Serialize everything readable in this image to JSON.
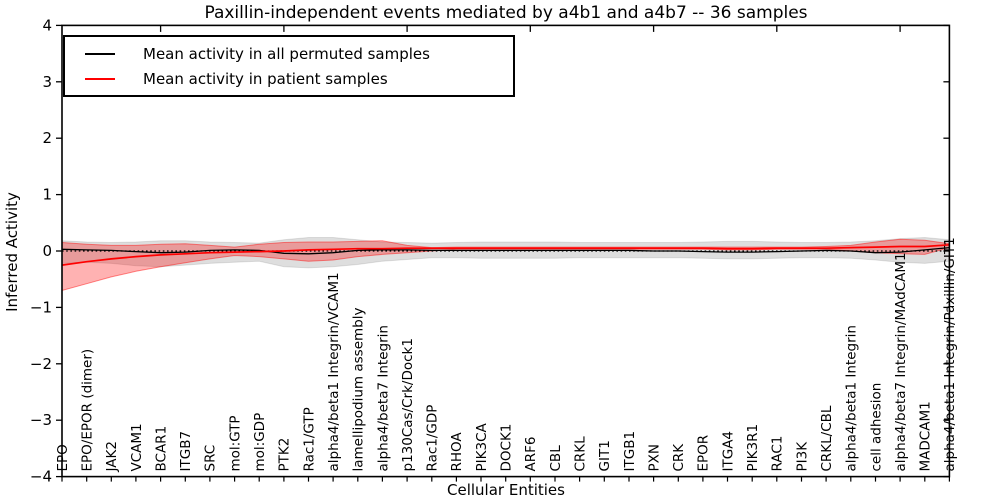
{
  "figure": {
    "title": "Paxillin-independent events mediated by a4b1 and a4b7 -- 36 samples",
    "xlabel": "Cellular Entities",
    "ylabel": "Inferred Activity"
  },
  "legend": {
    "items": [
      {
        "label": "Mean activity in all permuted samples",
        "color": "#000000"
      },
      {
        "label": "Mean activity in patient samples",
        "color": "#ff0000"
      }
    ]
  },
  "chart_data": {
    "type": "line",
    "title": "Paxillin-independent events mediated by a4b1 and a4b7 -- 36 samples",
    "xlabel": "Cellular Entities",
    "ylabel": "Inferred Activity",
    "ylim": [
      -4,
      4
    ],
    "yticks": [
      -4,
      -3,
      -2,
      -1,
      0,
      1,
      2,
      3,
      4
    ],
    "x_major_ticks": [
      5,
      10,
      15,
      20,
      25,
      30,
      35
    ],
    "grid": false,
    "legend_position": "upper left",
    "zero_line": 0,
    "categories": [
      "EPO",
      "EPO/EPOR (dimer)",
      "JAK2",
      "VCAM1",
      "BCAR1",
      "ITGB7",
      "SRC",
      "mol:GTP",
      "mol:GDP",
      "PTK2",
      "Rac1/GTP",
      "alpha4/beta1 Integrin/VCAM1",
      "lamellipodium assembly",
      "alpha4/beta7 Integrin",
      "p130Cas/Crk/Dock1",
      "Rac1/GDP",
      "RHOA",
      "PIK3CA",
      "DOCK1",
      "ARF6",
      "CBL",
      "CRKL",
      "GIT1",
      "ITGB1",
      "PXN",
      "CRK",
      "EPOR",
      "ITGA4",
      "PIK3R1",
      "RAC1",
      "PI3K",
      "CRKL/CBL",
      "alpha4/beta1 Integrin",
      "cell adhesion",
      "alpha4/beta7 Integrin/MAdCAM1",
      "MADCAM1",
      "alpha4/beta1 Integrin/Paxillin/GIT1"
    ],
    "series": [
      {
        "name": "Mean activity in all permuted samples",
        "color": "#000000",
        "width": 1.3,
        "values": [
          0.03,
          0.02,
          0.01,
          -0.01,
          -0.03,
          -0.02,
          0.01,
          0.02,
          0.01,
          -0.04,
          -0.05,
          -0.03,
          0.01,
          0.02,
          0.02,
          0.01,
          0.01,
          0.01,
          0.01,
          0.01,
          0.01,
          0.01,
          0.01,
          0.01,
          0.0,
          0.0,
          -0.01,
          -0.02,
          -0.02,
          -0.01,
          0.0,
          0.01,
          0.0,
          -0.03,
          -0.02,
          0.02,
          0.06
        ]
      },
      {
        "name": "Mean activity in patient samples",
        "color": "#ff0000",
        "width": 1.7,
        "values": [
          -0.25,
          -0.19,
          -0.14,
          -0.1,
          -0.07,
          -0.05,
          -0.03,
          -0.02,
          -0.01,
          0.0,
          0.02,
          0.03,
          0.04,
          0.04,
          0.05,
          0.05,
          0.05,
          0.05,
          0.05,
          0.05,
          0.05,
          0.05,
          0.05,
          0.05,
          0.05,
          0.05,
          0.05,
          0.04,
          0.04,
          0.05,
          0.05,
          0.05,
          0.06,
          0.07,
          0.08,
          0.08,
          0.11
        ]
      }
    ],
    "bands": [
      {
        "name": "permuted-samples-range",
        "fill": "rgba(0,0,0,0.13)",
        "edge": "rgba(0,0,0,0.10)",
        "upper": [
          0.18,
          0.16,
          0.15,
          0.16,
          0.18,
          0.18,
          0.16,
          0.15,
          0.14,
          0.2,
          0.24,
          0.24,
          0.2,
          0.16,
          0.15,
          0.14,
          0.15,
          0.16,
          0.16,
          0.16,
          0.16,
          0.15,
          0.15,
          0.15,
          0.15,
          0.15,
          0.16,
          0.17,
          0.17,
          0.16,
          0.15,
          0.15,
          0.16,
          0.18,
          0.22,
          0.24,
          0.2
        ],
        "lower": [
          -0.22,
          -0.2,
          -0.22,
          -0.26,
          -0.28,
          -0.25,
          -0.22,
          -0.2,
          -0.18,
          -0.28,
          -0.3,
          -0.28,
          -0.24,
          -0.18,
          -0.15,
          -0.12,
          -0.12,
          -0.13,
          -0.13,
          -0.13,
          -0.13,
          -0.12,
          -0.12,
          -0.12,
          -0.12,
          -0.12,
          -0.13,
          -0.14,
          -0.14,
          -0.13,
          -0.12,
          -0.12,
          -0.13,
          -0.16,
          -0.2,
          -0.22,
          -0.18
        ]
      },
      {
        "name": "patient-samples-range",
        "fill": "rgba(255,0,0,0.30)",
        "edge": "rgba(255,0,0,0.45)",
        "upper": [
          0.15,
          0.12,
          0.1,
          0.1,
          0.12,
          0.13,
          0.1,
          0.07,
          0.12,
          0.15,
          0.16,
          0.16,
          0.17,
          0.18,
          0.1,
          0.06,
          0.07,
          0.07,
          0.07,
          0.07,
          0.07,
          0.07,
          0.07,
          0.07,
          0.07,
          0.07,
          0.07,
          0.07,
          0.07,
          0.07,
          0.07,
          0.08,
          0.1,
          0.16,
          0.21,
          0.19,
          0.13
        ],
        "lower": [
          -0.7,
          -0.58,
          -0.46,
          -0.36,
          -0.28,
          -0.21,
          -0.14,
          -0.08,
          -0.1,
          -0.14,
          -0.18,
          -0.16,
          -0.1,
          -0.06,
          -0.03,
          0.0,
          0.03,
          0.03,
          0.03,
          0.03,
          0.03,
          0.03,
          0.03,
          0.03,
          0.03,
          0.03,
          0.03,
          0.02,
          0.02,
          0.03,
          0.03,
          0.03,
          0.0,
          -0.03,
          -0.05,
          -0.06,
          0.06
        ]
      }
    ]
  }
}
